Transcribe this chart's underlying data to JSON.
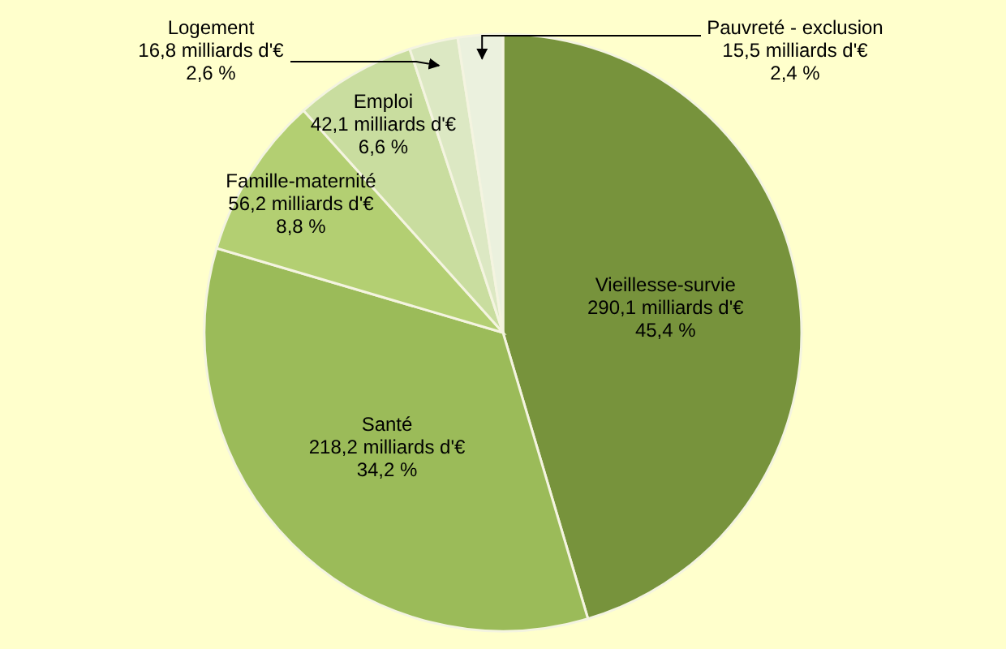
{
  "chart_data": {
    "type": "pie",
    "categories": [
      "Vieillesse-survie",
      "Santé",
      "Famille-maternité",
      "Emploi",
      "Logement",
      "Pauvreté - exclusion"
    ],
    "values": [
      290.1,
      218.2,
      56.2,
      42.1,
      16.8,
      15.5
    ],
    "value_labels": [
      "290,1 milliards d'€\n45,4 %",
      "218,2 milliards d'€\n34,2 %",
      "56,2 milliards d'€\n8,8 %",
      "42,1 milliards d'€\n6,6 %",
      "16,8 milliards d'€\n2,6 %",
      "15,5 milliards d'€\n2,4 %"
    ],
    "colors": [
      "#77933c",
      "#9bbb59",
      "#b3cf72",
      "#c9dd9f",
      "#dce8c3",
      "#ebf1de"
    ]
  }
}
